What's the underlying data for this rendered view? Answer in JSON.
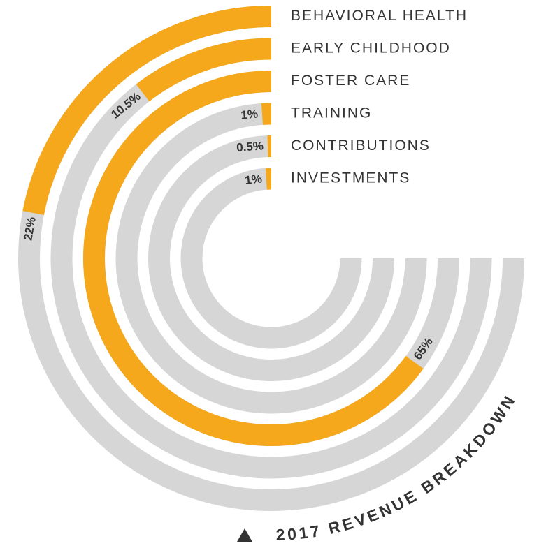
{
  "chart_data": {
    "type": "radial_bar",
    "title": "2017 REVENUE BREAKDOWN",
    "categories": [
      "BEHAVIORAL HEALTH",
      "EARLY CHILDHOOD",
      "FOSTER CARE",
      "TRAINING",
      "CONTRIBUTIONS",
      "INVESTMENTS"
    ],
    "values": [
      22,
      10.5,
      65,
      1,
      0.5,
      1
    ],
    "value_labels": [
      "22%",
      "10.5%",
      "65%",
      "1%",
      "0.5%",
      "1%"
    ],
    "color": "#f5a81c",
    "track_color": "#d6d6d6"
  }
}
